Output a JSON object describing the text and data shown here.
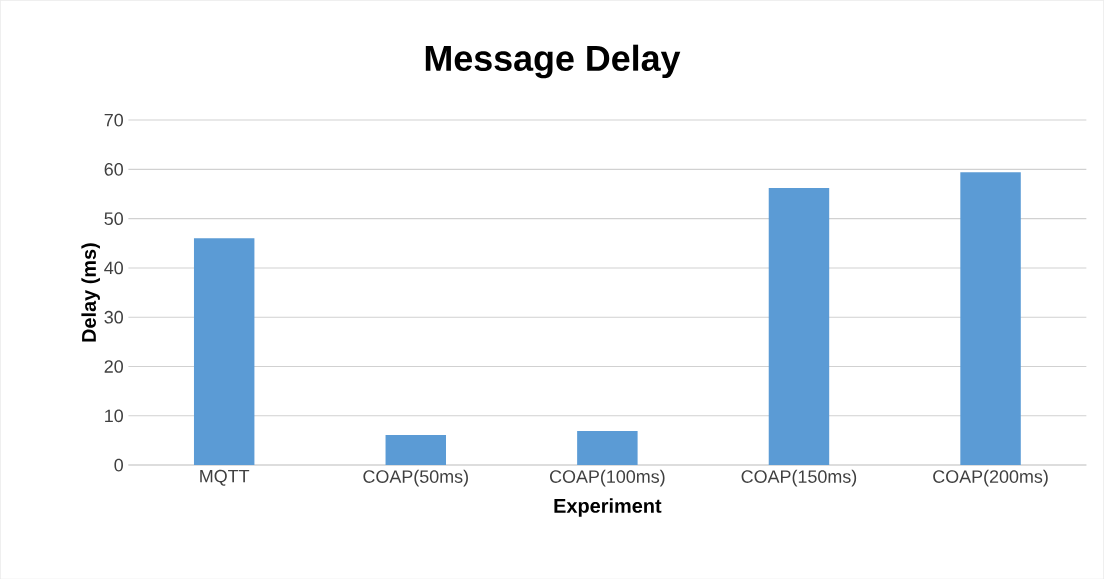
{
  "chart_data": {
    "type": "bar",
    "title": "Message Delay",
    "xlabel": "Experiment",
    "ylabel": "Delay (ms)",
    "categories": [
      "MQTT",
      "COAP(50ms)",
      "COAP(100ms)",
      "COAP(150ms)",
      "COAP(200ms)"
    ],
    "values": [
      46.0,
      6.1,
      6.9,
      56.2,
      59.4
    ],
    "color": "#5b9bd5",
    "ylim": [
      0,
      70
    ],
    "yticks": [
      0,
      10,
      20,
      30,
      40,
      50,
      60,
      70
    ],
    "grid": "y"
  }
}
